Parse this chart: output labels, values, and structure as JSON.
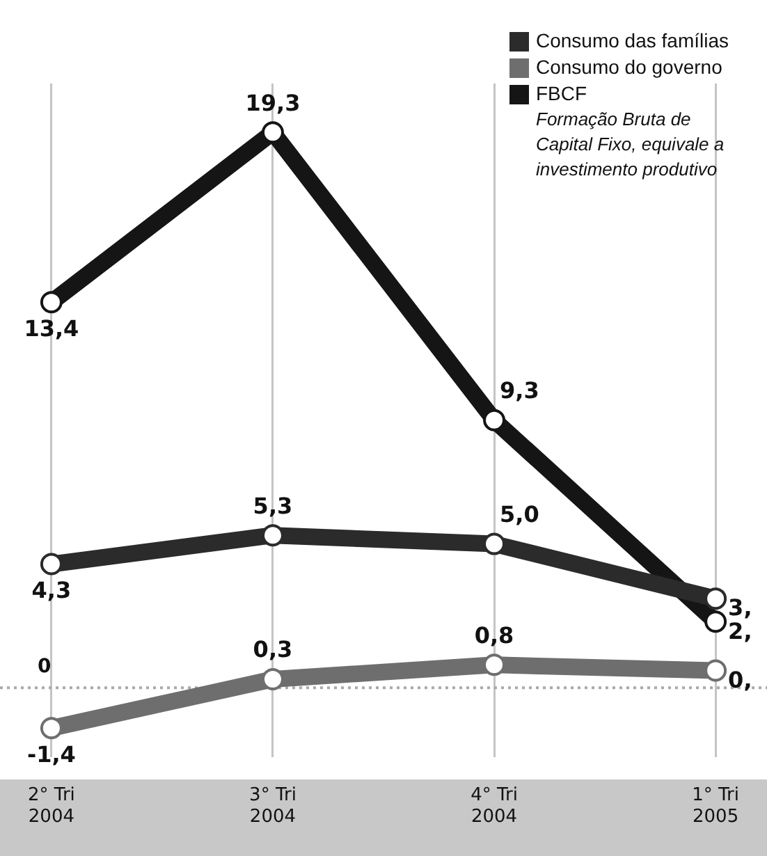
{
  "chart_data": {
    "type": "line",
    "categories": [
      "2° Tri 2004",
      "3° Tri 2004",
      "4° Tri 2004",
      "1° Tri 2005"
    ],
    "series": [
      {
        "name": "Consumo das famílias",
        "color": "#2b2b2b",
        "values": [
          4.3,
          5.3,
          5.0,
          3.1
        ],
        "value_labels": [
          "4,3",
          "5,3",
          "5,0",
          null
        ]
      },
      {
        "name": "Consumo do governo",
        "color": "#6e6e6e",
        "values": [
          -1.4,
          0.3,
          0.8,
          0.6
        ],
        "value_labels": [
          "-1,4",
          "0,3",
          "0,8",
          null
        ]
      },
      {
        "name": "FBCF",
        "color": "#151515",
        "values": [
          13.4,
          19.3,
          9.3,
          2.3
        ],
        "value_labels": [
          "13,4",
          "19,3",
          "9,3",
          null
        ]
      }
    ],
    "ylim": [
      -2.4,
      21
    ],
    "tick_labels": "x",
    "grid": "x",
    "legend": "top right",
    "marker": "circle",
    "line_style": "solid",
    "ref_lines": [
      {
        "axis": "y",
        "value": 0,
        "label": "0",
        "color": "#aaaaaa",
        "line_style": "dotted"
      }
    ],
    "annotations": [
      "Formação Bruta de Capital Fixo, equivale a investimento produtivo",
      {
        "text": "3,",
        "x": "1° Tri 2005",
        "y": 3.1
      },
      {
        "text": "2,",
        "x": "1° Tri 2005",
        "y": 2.3
      },
      {
        "text": "0,",
        "x": "1° Tri 2005",
        "y": 0.6
      }
    ]
  }
}
